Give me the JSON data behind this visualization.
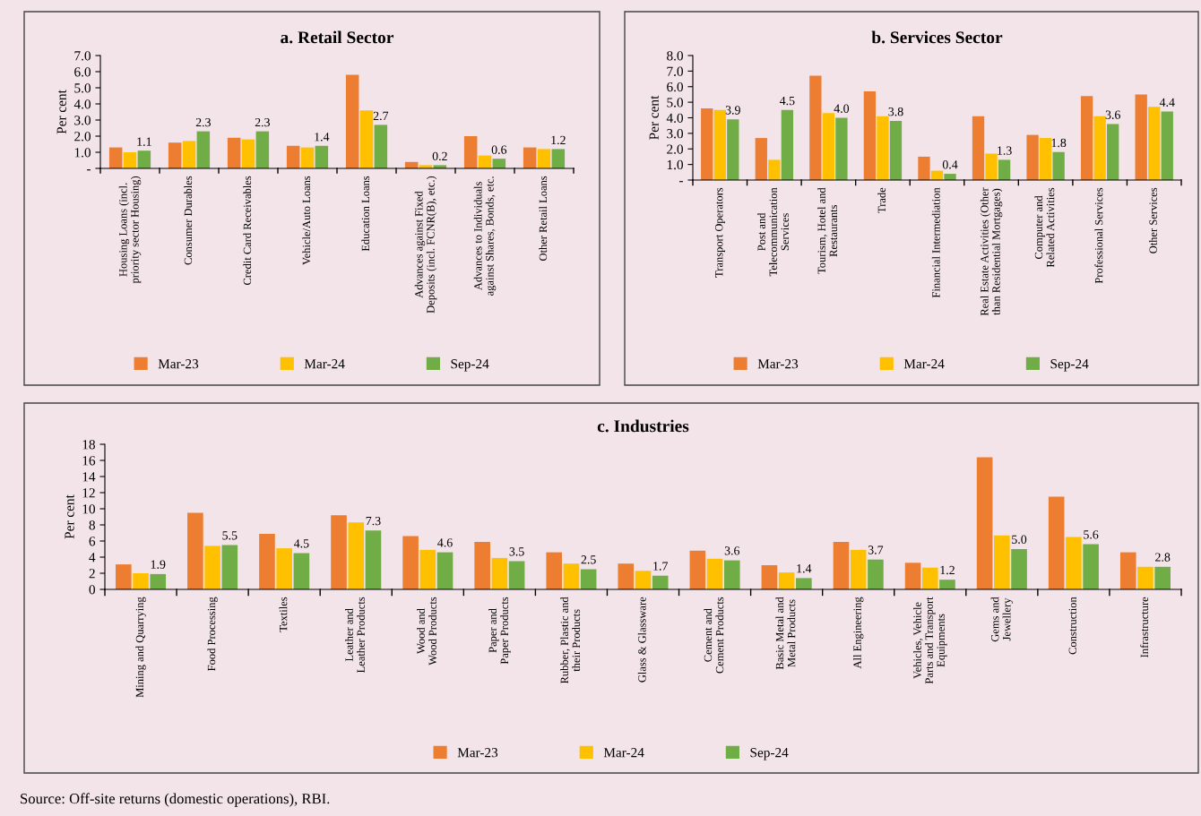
{
  "chart_data": [
    {
      "type": "bar",
      "title": "a. Retail Sector",
      "ylabel": "Per cent",
      "categories": [
        "Housing Loans (incl.\npriority sector Housing)",
        "Consumer Durables",
        "Credit Card Receivables",
        "Vehicle/Auto Loans",
        "Education Loans",
        "Advances against Fixed\nDeposits (incl. FCNR(B), etc.)",
        "Advances to Individuals\nagainst Shares, Bonds, etc.",
        "Other Retail Loans"
      ],
      "series": [
        {
          "name": "Mar-23",
          "color": "#ed7d31",
          "values": [
            1.3,
            1.6,
            1.9,
            1.4,
            5.8,
            0.4,
            2.0,
            1.3
          ]
        },
        {
          "name": "Mar-24",
          "color": "#ffc000",
          "values": [
            1.0,
            1.7,
            1.8,
            1.3,
            3.6,
            0.2,
            0.8,
            1.2
          ]
        },
        {
          "name": "Sep-24",
          "color": "#70ad47",
          "values": [
            1.1,
            2.3,
            2.3,
            1.4,
            2.7,
            0.2,
            0.6,
            1.2
          ],
          "value_labels": [
            "1.1",
            "2.3",
            "2.3",
            "1.4",
            "2.7",
            "0.2",
            "0.6",
            "1.2"
          ]
        }
      ],
      "ylim": [
        0,
        7
      ],
      "yticks": [
        {
          "value": 0,
          "label": "-"
        },
        {
          "value": 1,
          "label": "1.0"
        },
        {
          "value": 2,
          "label": "2.0"
        },
        {
          "value": 3,
          "label": "3.0"
        },
        {
          "value": 4,
          "label": "4.0"
        },
        {
          "value": 5,
          "label": "5.0"
        },
        {
          "value": 6,
          "label": "6.0"
        },
        {
          "value": 7,
          "label": "7.0"
        }
      ],
      "legend": "bottom",
      "grid": false
    },
    {
      "type": "bar",
      "title": "b. Services Sector",
      "ylabel": "Per cent",
      "categories": [
        "Transport Operators",
        "Post and\nTelecommunication\nServices",
        "Tourism, Hotel and\nRestaurants",
        "Trade",
        "Financial Intermediation",
        "Real Estate Activities (Other\nthan Residential Mortgages)",
        "Computer and\nRelated Activities",
        "Professional Services",
        "Other Services"
      ],
      "series": [
        {
          "name": "Mar-23",
          "color": "#ed7d31",
          "values": [
            4.6,
            2.7,
            6.7,
            5.7,
            1.5,
            4.1,
            2.9,
            5.4,
            5.5
          ]
        },
        {
          "name": "Mar-24",
          "color": "#ffc000",
          "values": [
            4.5,
            1.3,
            4.3,
            4.1,
            0.6,
            1.7,
            2.7,
            4.1,
            4.7
          ]
        },
        {
          "name": "Sep-24",
          "color": "#70ad47",
          "values": [
            3.9,
            4.5,
            4.0,
            3.8,
            0.4,
            1.3,
            1.8,
            3.6,
            4.4
          ],
          "value_labels": [
            "3.9",
            "4.5",
            "4.0",
            "3.8",
            "0.4",
            "1.3",
            "1.8",
            "3.6",
            "4.4"
          ]
        }
      ],
      "ylim": [
        0,
        8
      ],
      "yticks": [
        {
          "value": 0,
          "label": "-"
        },
        {
          "value": 1,
          "label": "1.0"
        },
        {
          "value": 2,
          "label": "2.0"
        },
        {
          "value": 3,
          "label": "3.0"
        },
        {
          "value": 4,
          "label": "4.0"
        },
        {
          "value": 5,
          "label": "5.0"
        },
        {
          "value": 6,
          "label": "6.0"
        },
        {
          "value": 7,
          "label": "7.0"
        },
        {
          "value": 8,
          "label": "8.0"
        }
      ],
      "legend": "bottom",
      "grid": false
    },
    {
      "type": "bar",
      "title": "c. Industries",
      "ylabel": "Per cent",
      "categories": [
        "Mining and Quarrying",
        "Food Processing",
        "Textiles",
        "Leather and\nLeather Products",
        "Wood and\nWood Products",
        "Paper and\nPaper Products",
        "Rubber, Plastic and\ntheir Products",
        "Glass & Glassware",
        "Cement and\nCement Products",
        "Basic Metal and\nMetal Products",
        "All Engineering",
        "Vehicles, Vehicle\nParts and Transport\nEquipments",
        "Gems and\nJewellery",
        "Construction",
        "Infrastructure"
      ],
      "series": [
        {
          "name": "Mar-23",
          "color": "#ed7d31",
          "values": [
            3.1,
            9.5,
            6.9,
            9.2,
            6.6,
            5.9,
            4.6,
            3.2,
            4.8,
            3.0,
            5.9,
            3.3,
            16.4,
            11.5,
            4.6
          ]
        },
        {
          "name": "Mar-24",
          "color": "#ffc000",
          "values": [
            2.0,
            5.4,
            5.1,
            8.3,
            4.9,
            3.9,
            3.2,
            2.3,
            3.8,
            2.1,
            4.9,
            2.7,
            6.7,
            6.5,
            2.8
          ]
        },
        {
          "name": "Sep-24",
          "color": "#70ad47",
          "values": [
            1.9,
            5.5,
            4.5,
            7.3,
            4.6,
            3.5,
            2.5,
            1.7,
            3.6,
            1.4,
            3.7,
            1.2,
            5.0,
            5.6,
            2.8
          ],
          "value_labels": [
            "1.9",
            "5.5",
            "4.5",
            "7.3",
            "4.6",
            "3.5",
            "2.5",
            "1.7",
            "3.6",
            "1.4",
            "3.7",
            "1.2",
            "5.0",
            "5.6",
            "2.8"
          ]
        }
      ],
      "ylim": [
        0,
        18
      ],
      "yticks": [
        0,
        2,
        4,
        6,
        8,
        10,
        12,
        14,
        16,
        18
      ],
      "legend": "bottom",
      "grid": false,
      "annotations": [
        "Source: Off-site returns (domestic operations), RBI."
      ]
    }
  ]
}
